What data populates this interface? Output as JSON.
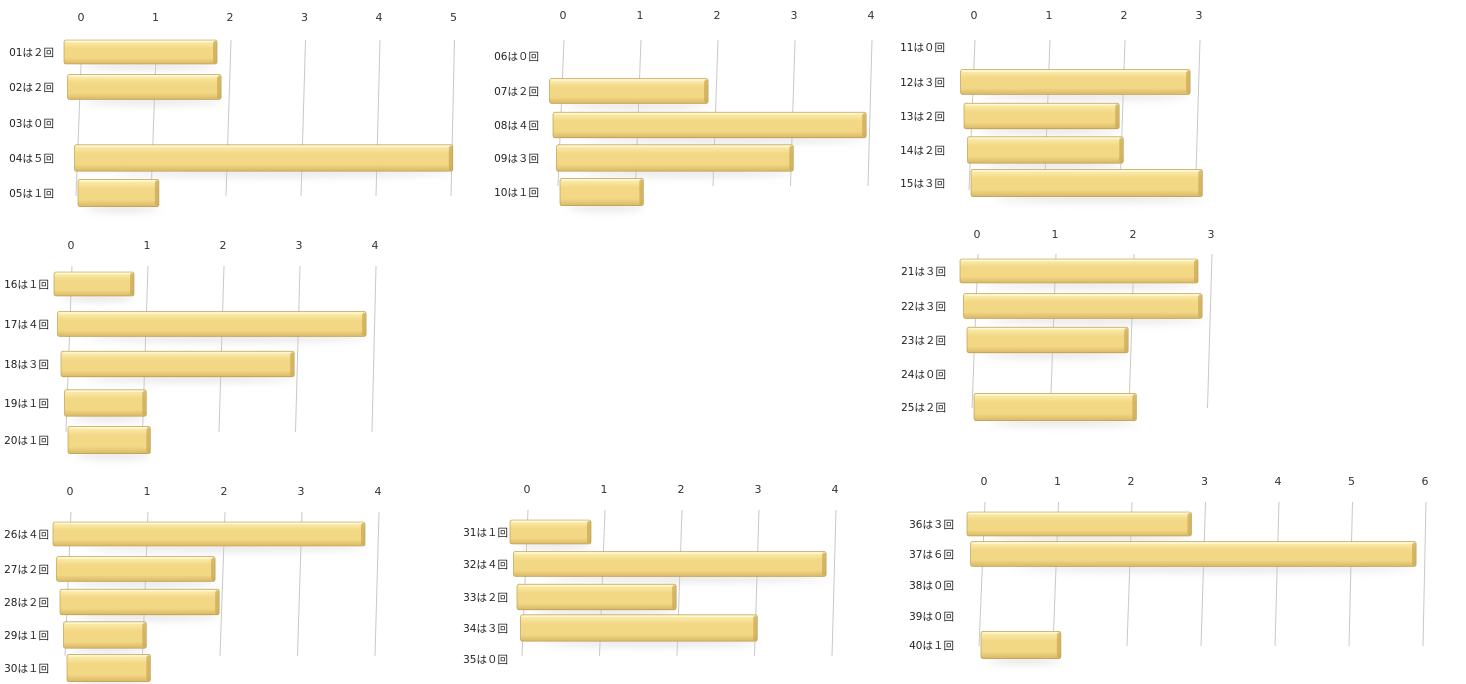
{
  "colors": {
    "bar_top": "#fdf0b4",
    "bar_mid": "#f2d784",
    "bar_bottom": "#d8b866",
    "bar_edge": "#b49440",
    "bar_end_shade": "#c9a652",
    "grid": "#c8c8c8",
    "shadow": "#cfcfcf"
  },
  "chart_data": [
    {
      "type": "bar",
      "orientation": "horizontal",
      "xlim": [
        0,
        5
      ],
      "x_ticks": [
        "0",
        "1",
        "2",
        "3",
        "4",
        "5"
      ],
      "categories": [
        "01は２回",
        "02は２回",
        "03は０回",
        "04は５回",
        "05は１回"
      ],
      "values": [
        2,
        2,
        0,
        5,
        1
      ]
    },
    {
      "type": "bar",
      "orientation": "horizontal",
      "xlim": [
        0,
        4
      ],
      "x_ticks": [
        "0",
        "1",
        "2",
        "3",
        "4"
      ],
      "categories": [
        "06は０回",
        "07は２回",
        "08は４回",
        "09は３回",
        "10は１回"
      ],
      "values": [
        0,
        2,
        4,
        3,
        1
      ]
    },
    {
      "type": "bar",
      "orientation": "horizontal",
      "xlim": [
        0,
        3
      ],
      "x_ticks": [
        "0",
        "1",
        "2",
        "3"
      ],
      "categories": [
        "11は０回",
        "12は３回",
        "13は２回",
        "14は２回",
        "15は３回"
      ],
      "values": [
        0,
        3,
        2,
        2,
        3
      ]
    },
    {
      "type": "bar",
      "orientation": "horizontal",
      "xlim": [
        0,
        4
      ],
      "x_ticks": [
        "0",
        "1",
        "2",
        "3",
        "4"
      ],
      "categories": [
        "16は１回",
        "17は４回",
        "18は３回",
        "19は１回",
        "20は１回"
      ],
      "values": [
        1,
        4,
        3,
        1,
        1
      ]
    },
    {
      "type": "bar",
      "orientation": "horizontal",
      "xlim": [
        0,
        3
      ],
      "x_ticks": [
        "0",
        "1",
        "2",
        "3"
      ],
      "categories": [
        "21は３回",
        "22は３回",
        "23は２回",
        "24は０回",
        "25は２回"
      ],
      "values": [
        3,
        3,
        2,
        0,
        2
      ]
    },
    {
      "type": "bar",
      "orientation": "horizontal",
      "xlim": [
        0,
        4
      ],
      "x_ticks": [
        "0",
        "1",
        "2",
        "3",
        "4"
      ],
      "categories": [
        "26は４回",
        "27は２回",
        "28は２回",
        "29は１回",
        "30は１回"
      ],
      "values": [
        4,
        2,
        2,
        1,
        1
      ]
    },
    {
      "type": "bar",
      "orientation": "horizontal",
      "xlim": [
        0,
        4
      ],
      "x_ticks": [
        "0",
        "1",
        "2",
        "3",
        "4"
      ],
      "categories": [
        "31は１回",
        "32は４回",
        "33は２回",
        "34は３回",
        "35は０回"
      ],
      "values": [
        1,
        4,
        2,
        3,
        0
      ]
    },
    {
      "type": "bar",
      "orientation": "horizontal",
      "xlim": [
        0,
        6
      ],
      "x_ticks": [
        "0",
        "1",
        "2",
        "3",
        "4",
        "5",
        "6"
      ],
      "categories": [
        "36は３回",
        "37は６回",
        "38は０回",
        "39は０回",
        "40は１回"
      ],
      "values": [
        3,
        6,
        0,
        0,
        1
      ]
    }
  ]
}
